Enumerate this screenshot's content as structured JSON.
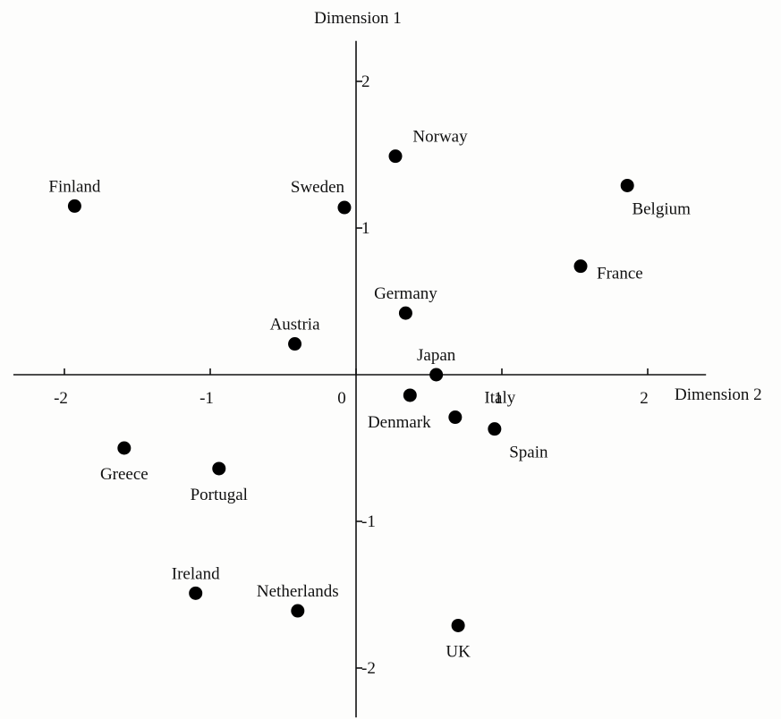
{
  "chart_data": {
    "type": "scatter",
    "xlabel": "Dimension 2",
    "ylabel": "Dimension 1",
    "xlim": [
      -2.35,
      2.4
    ],
    "ylim": [
      -2.3,
      2.3
    ],
    "x_ticks": [
      "-2",
      "-1",
      "0",
      "1",
      "2"
    ],
    "x_tick_values": [
      -2,
      -1,
      0,
      1,
      2
    ],
    "y_ticks": [
      "2",
      "1",
      "-1",
      "-2"
    ],
    "y_tick_values": [
      2,
      1,
      -1,
      -2
    ],
    "grid": false,
    "legend": "none",
    "point_color": "#000000",
    "points": [
      {
        "label": "Finland",
        "x": -1.93,
        "y": 1.15,
        "label_pos": "above"
      },
      {
        "label": "Sweden",
        "x": -0.08,
        "y": 1.14,
        "label_pos": "above-left"
      },
      {
        "label": "Norway",
        "x": 0.27,
        "y": 1.49,
        "label_pos": "above-right"
      },
      {
        "label": "Belgium",
        "x": 1.86,
        "y": 1.29,
        "label_pos": "below-right"
      },
      {
        "label": "France",
        "x": 1.54,
        "y": 0.74,
        "label_pos": "right"
      },
      {
        "label": "Germany",
        "x": 0.34,
        "y": 0.42,
        "label_pos": "above"
      },
      {
        "label": "Austria",
        "x": -0.42,
        "y": 0.21,
        "label_pos": "above"
      },
      {
        "label": "Japan",
        "x": 0.55,
        "y": 0.0,
        "label_pos": "above"
      },
      {
        "label": "Denmark",
        "x": 0.37,
        "y": -0.14,
        "label_pos": "below-left"
      },
      {
        "label": "Italy",
        "x": 0.68,
        "y": -0.29,
        "label_pos": "above-right"
      },
      {
        "label": "Spain",
        "x": 0.95,
        "y": -0.37,
        "label_pos": "below-right"
      },
      {
        "label": "Greece",
        "x": -1.59,
        "y": -0.5,
        "label_pos": "below"
      },
      {
        "label": "Portugal",
        "x": -0.94,
        "y": -0.64,
        "label_pos": "below"
      },
      {
        "label": "Ireland",
        "x": -1.1,
        "y": -1.49,
        "label_pos": "above"
      },
      {
        "label": "Netherlands",
        "x": -0.4,
        "y": -1.61,
        "label_pos": "above"
      },
      {
        "label": "UK",
        "x": 0.7,
        "y": -1.71,
        "label_pos": "below"
      }
    ]
  }
}
